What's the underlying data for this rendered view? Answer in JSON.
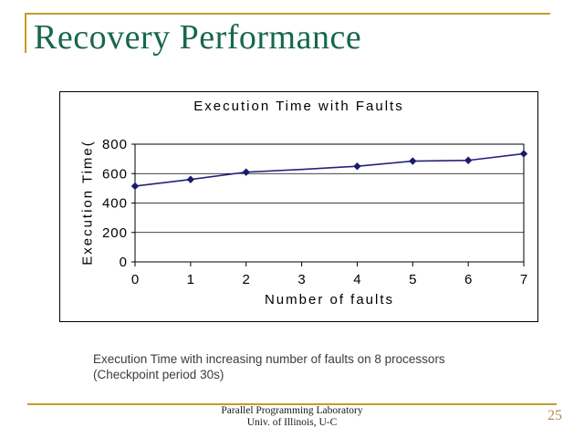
{
  "slide": {
    "title": "Recovery Performance",
    "caption": {
      "line1": "Execution Time with increasing number of faults on 8 processors",
      "line2": "(Checkpoint period 30s)"
    },
    "footer": {
      "line1": "Parallel Programming Laboratory",
      "line2": "Univ. of Illinois, U-C"
    },
    "page_number": "25"
  },
  "colors": {
    "title_green": "#17684B",
    "accent_gold": "#C49C2D",
    "series_line_navy": "#23237E",
    "series_marker_navy": "#1A1A6E",
    "caption_gray": "#3C3C3C",
    "page_number_tan": "#BE8A52",
    "chart_border": "#000000"
  },
  "chart_data": {
    "type": "line",
    "title": "Execution Time with Faults",
    "xlabel": "Number of faults",
    "ylabel": "Execution Time(",
    "x": [
      0,
      1,
      2,
      3,
      4,
      5,
      6,
      7
    ],
    "series": [
      {
        "name": "Execution Time with Faults",
        "values": [
          515,
          560,
          610,
          628,
          650,
          685,
          690,
          735
        ],
        "marker": "diamond",
        "marker_shown": [
          true,
          true,
          true,
          false,
          true,
          true,
          true,
          true
        ]
      }
    ],
    "xticks": [
      "0",
      "1",
      "2",
      "3",
      "4",
      "5",
      "6",
      "7"
    ],
    "yticks": [
      0,
      200,
      400,
      600,
      800
    ],
    "ylim": [
      0,
      800
    ],
    "grid": "horizontal",
    "legend": "none"
  }
}
